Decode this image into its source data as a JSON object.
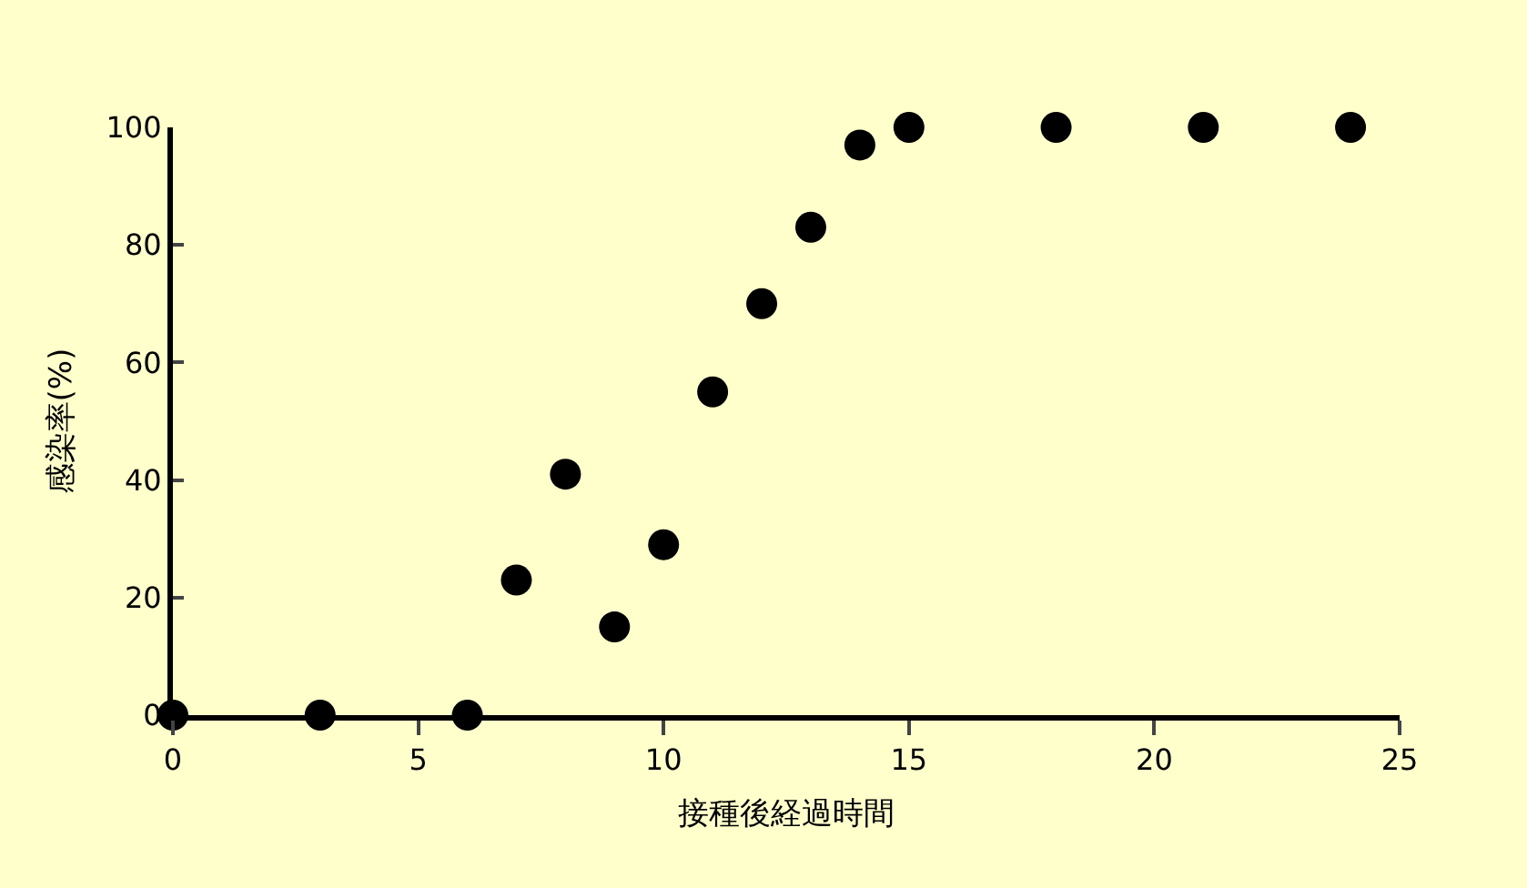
{
  "chart_data": {
    "type": "scatter",
    "xlabel": "接種後経過時間",
    "ylabel": "感染率(%)",
    "x": [
      0,
      3,
      6,
      7,
      8,
      9,
      10,
      11,
      12,
      13,
      14,
      15,
      18,
      21,
      24
    ],
    "series": [
      {
        "color": "#000000",
        "values": [
          0,
          0,
          0,
          23,
          41,
          15,
          29,
          55,
          70,
          83,
          97,
          100,
          100,
          100,
          100
        ]
      }
    ],
    "xlim": [
      0,
      25
    ],
    "xticks": [
      0,
      5,
      10,
      15,
      20,
      25
    ],
    "ylim": [
      0,
      100
    ],
    "yticks": [
      0,
      20,
      40,
      60,
      80,
      100
    ],
    "grid": false,
    "legend": false,
    "marker": "circle"
  }
}
